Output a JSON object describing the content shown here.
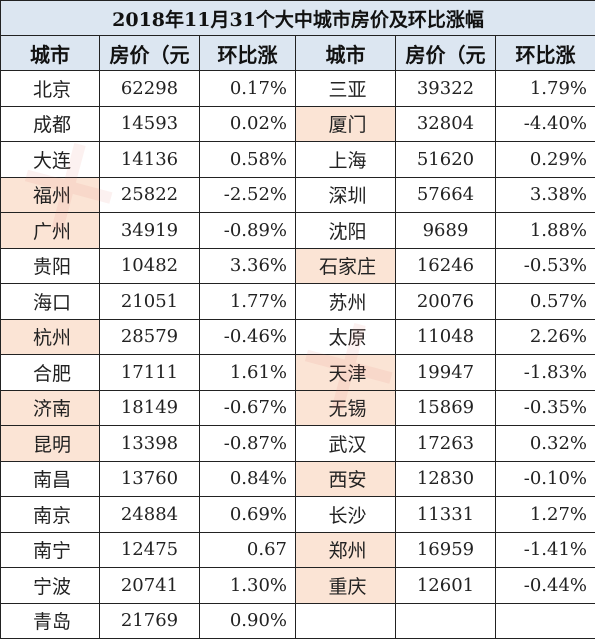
{
  "title": "2018年11月31个大中城市房价及环比涨幅",
  "headers": [
    "城市",
    "房价（元",
    "环比涨",
    "城市",
    "房价（元",
    "环比涨"
  ],
  "rows": [
    {
      "left": {
        "city": "北京",
        "price": "62298",
        "change": "0.17%",
        "hl": false
      },
      "right": {
        "city": "三亚",
        "price": "39322",
        "change": "1.79%",
        "hl": false
      }
    },
    {
      "left": {
        "city": "成都",
        "price": "14593",
        "change": "0.02%",
        "hl": false
      },
      "right": {
        "city": "厦门",
        "price": "32804",
        "change": "-4.40%",
        "hl": true
      }
    },
    {
      "left": {
        "city": "大连",
        "price": "14136",
        "change": "0.58%",
        "hl": false
      },
      "right": {
        "city": "上海",
        "price": "51620",
        "change": "0.29%",
        "hl": false
      }
    },
    {
      "left": {
        "city": "福州",
        "price": "25822",
        "change": "-2.52%",
        "hl": true
      },
      "right": {
        "city": "深圳",
        "price": "57664",
        "change": "3.38%",
        "hl": false
      }
    },
    {
      "left": {
        "city": "广州",
        "price": "34919",
        "change": "-0.89%",
        "hl": true
      },
      "right": {
        "city": "沈阳",
        "price": "9689",
        "change": "1.88%",
        "hl": false
      }
    },
    {
      "left": {
        "city": "贵阳",
        "price": "10482",
        "change": "3.36%",
        "hl": false
      },
      "right": {
        "city": "石家庄",
        "price": "16246",
        "change": "-0.53%",
        "hl": true
      }
    },
    {
      "left": {
        "city": "海口",
        "price": "21051",
        "change": "1.77%",
        "hl": false
      },
      "right": {
        "city": "苏州",
        "price": "20076",
        "change": "0.57%",
        "hl": false
      }
    },
    {
      "left": {
        "city": "杭州",
        "price": "28579",
        "change": "-0.46%",
        "hl": true
      },
      "right": {
        "city": "太原",
        "price": "11048",
        "change": "2.26%",
        "hl": false
      }
    },
    {
      "left": {
        "city": "合肥",
        "price": "17111",
        "change": "1.61%",
        "hl": false
      },
      "right": {
        "city": "天津",
        "price": "19947",
        "change": "-1.83%",
        "hl": true
      }
    },
    {
      "left": {
        "city": "济南",
        "price": "18149",
        "change": "-0.67%",
        "hl": true
      },
      "right": {
        "city": "无锡",
        "price": "15869",
        "change": "-0.35%",
        "hl": true
      }
    },
    {
      "left": {
        "city": "昆明",
        "price": "13398",
        "change": "-0.87%",
        "hl": true
      },
      "right": {
        "city": "武汉",
        "price": "17263",
        "change": "0.32%",
        "hl": false
      }
    },
    {
      "left": {
        "city": "南昌",
        "price": "13760",
        "change": "0.84%",
        "hl": false
      },
      "right": {
        "city": "西安",
        "price": "12830",
        "change": "-0.10%",
        "hl": true
      }
    },
    {
      "left": {
        "city": "南京",
        "price": "24884",
        "change": "0.69%",
        "hl": false
      },
      "right": {
        "city": "长沙",
        "price": "11331",
        "change": "1.27%",
        "hl": false
      }
    },
    {
      "left": {
        "city": "南宁",
        "price": "12475",
        "change": "0.67",
        "hl": false
      },
      "right": {
        "city": "郑州",
        "price": "16959",
        "change": "-1.41%",
        "hl": true
      }
    },
    {
      "left": {
        "city": "宁波",
        "price": "20741",
        "change": "1.30%",
        "hl": false
      },
      "right": {
        "city": "重庆",
        "price": "12601",
        "change": "-0.44%",
        "hl": true
      }
    },
    {
      "left": {
        "city": "青岛",
        "price": "21769",
        "change": "0.90%",
        "hl": false
      },
      "right": {
        "city": "",
        "price": "",
        "change": "",
        "hl": false
      }
    }
  ]
}
